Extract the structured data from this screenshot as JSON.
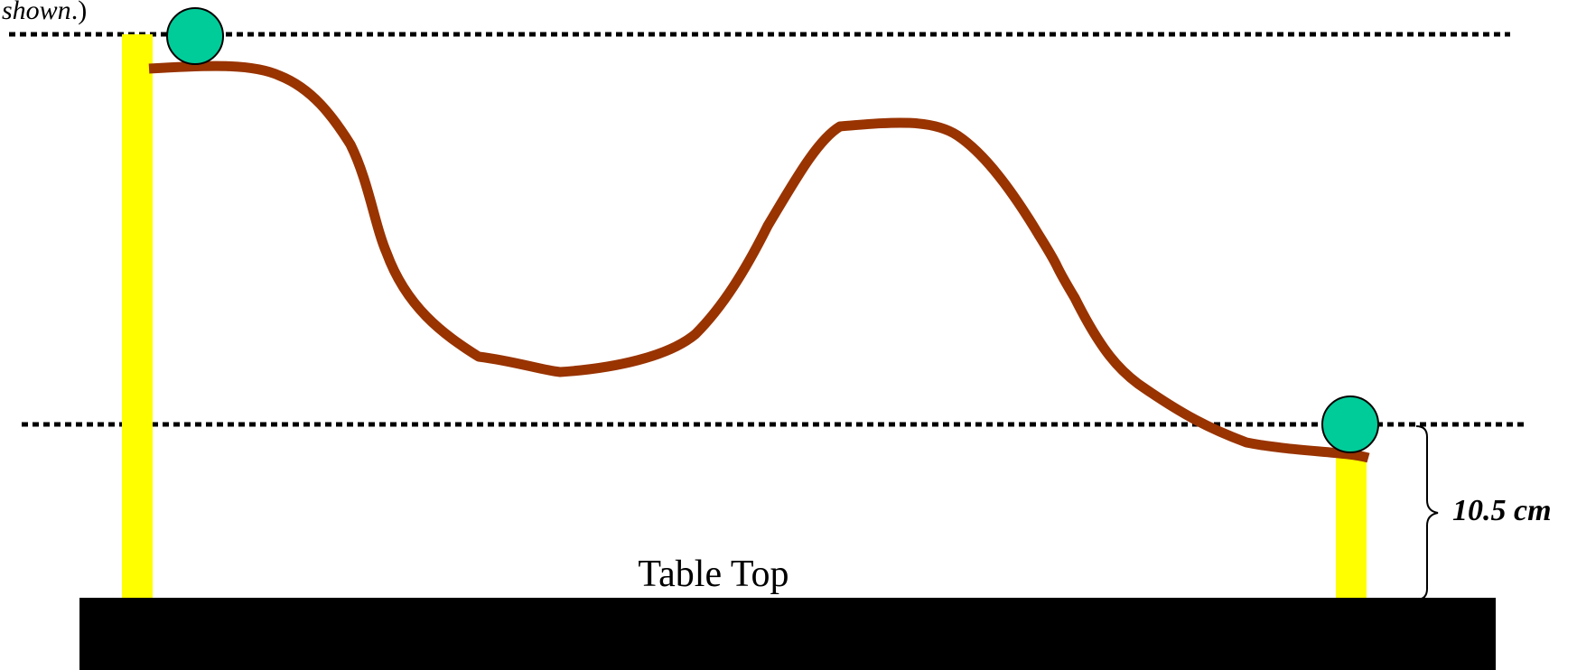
{
  "caption": {
    "fragment_italic": "shown",
    "fragment_rest": ".)"
  },
  "labels": {
    "table_top": "Table Top",
    "height": "10.5 cm"
  },
  "colors": {
    "support": "#ffff00",
    "track": "#993300",
    "ball": "#00cc99",
    "ball_outline": "#000000",
    "table": "#000000",
    "reference_line": "#000000"
  }
}
